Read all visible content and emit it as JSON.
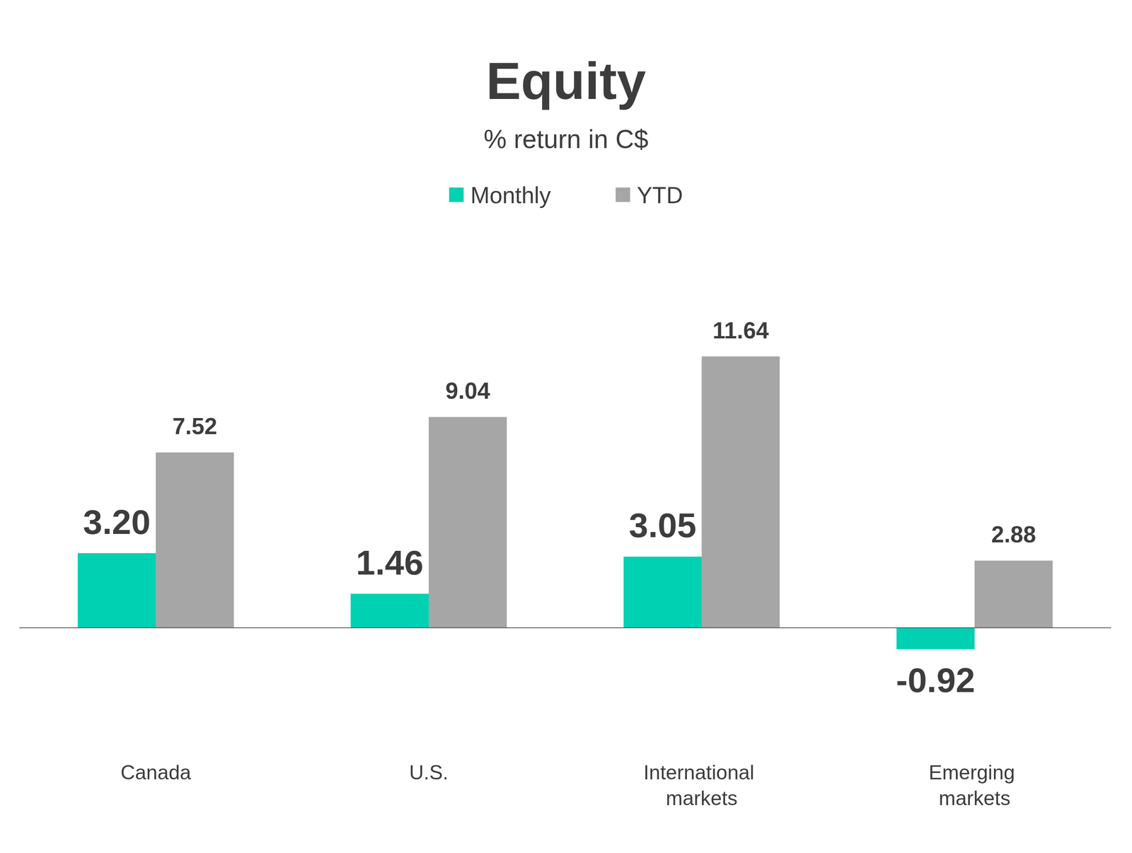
{
  "chart_data": {
    "type": "bar",
    "title": "Equity",
    "subtitle": "% return in C$",
    "categories": [
      "Canada",
      "U.S.",
      "International markets",
      "Emerging markets"
    ],
    "series": [
      {
        "name": "Monthly",
        "color": "#00d1b2",
        "values": [
          3.2,
          1.46,
          3.05,
          -0.92
        ],
        "value_labels": [
          "3.20",
          "1.46",
          "3.05",
          "-0.92"
        ]
      },
      {
        "name": "YTD",
        "color": "#a6a6a6",
        "values": [
          7.52,
          9.04,
          11.64,
          2.88
        ]
      }
    ],
    "ylim": [
      -4,
      14
    ],
    "legend": "top",
    "data_labels": true,
    "tick_labels": "x",
    "grid": false
  }
}
